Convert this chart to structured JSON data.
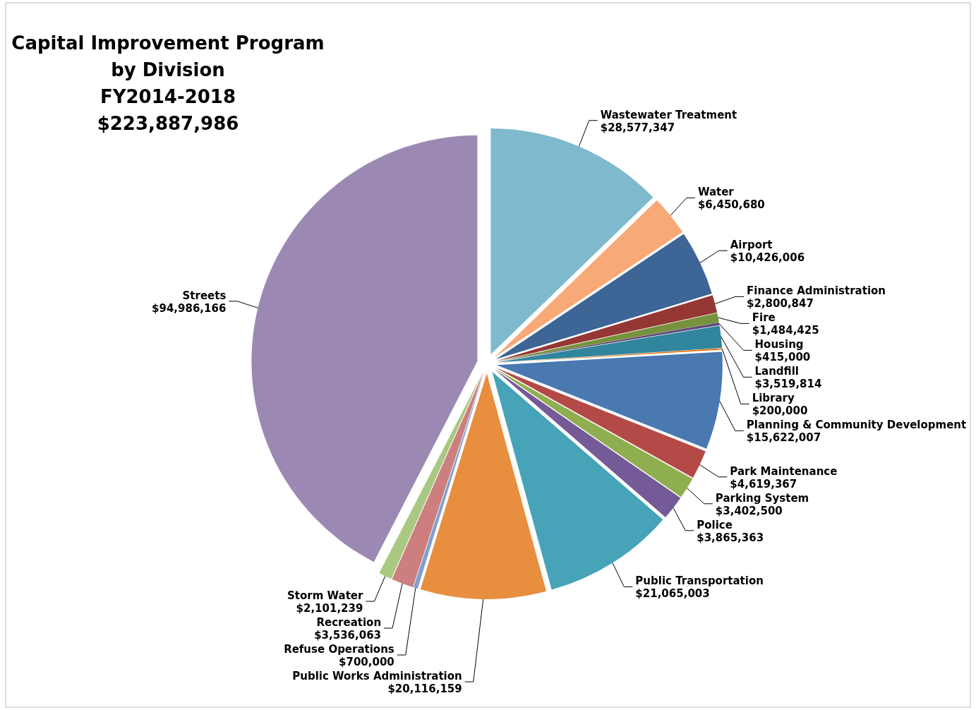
{
  "chart_data": {
    "type": "pie",
    "title": "Capital Improvement Program\nby Division\nFY2014-2018\n$223,887,986",
    "categories": [
      "Wastewater Treatment",
      "Water",
      "Airport",
      "Finance Administration",
      "Fire",
      "Housing",
      "Landfill",
      "Library",
      "Planning & Community Development",
      "Park Maintenance",
      "Parking System",
      "Police",
      "Public Transportation",
      "Public Works Administration",
      "Refuse Operations",
      "Recreation",
      "Storm Water",
      "Streets"
    ],
    "values": [
      28577347,
      6450680,
      10426006,
      2800847,
      1484425,
      415000,
      3519814,
      200000,
      15622007,
      4619367,
      3402500,
      3865363,
      21065003,
      20116159,
      700000,
      3536063,
      2101239,
      94986166
    ],
    "value_labels": [
      "$28,577,347",
      "$6,450,680",
      "$10,426,006",
      "$2,800,847",
      "$1,484,425",
      "$415,000",
      "$3,519,814",
      "$200,000",
      "$15,622,007",
      "$4,619,367",
      "$3,402,500",
      "$3,865,363",
      "$21,065,003",
      "$20,116,159",
      "$700,000",
      "$3,536,063",
      "$2,101,239",
      "$94,986,166"
    ],
    "colors": [
      "#7fb9cd",
      "#f7a978",
      "#3d6596",
      "#953734",
      "#76923c",
      "#5f497a",
      "#31859c",
      "#e46c0a",
      "#4a78b0",
      "#b44a47",
      "#8fae4f",
      "#745a96",
      "#46a3b8",
      "#e88e3f",
      "#7f9fd0",
      "#cc7f7e",
      "#a9c882",
      "#9b89b3"
    ]
  }
}
